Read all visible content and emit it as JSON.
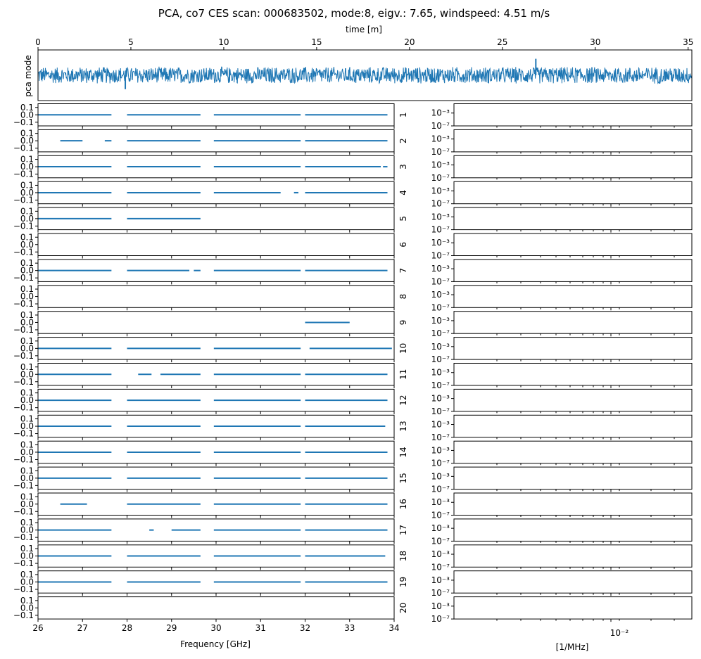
{
  "chart_data": [
    {
      "type": "line",
      "title": "PCA, co7 CES scan: 000683502, mode:8, eigv.: 7.65, windspeed: 4.51 m/s",
      "xlabel": "time [m]",
      "ylabel": "pca mode",
      "xlim": [
        0,
        35.2
      ],
      "ylim": [
        -1,
        1
      ],
      "xticks": [
        "0",
        "5",
        "10",
        "15",
        "20",
        "25",
        "30",
        "35"
      ],
      "color": "#1f77b4",
      "description_values": {
        "noise_band": [
          -0.35,
          0.35
        ],
        "spikes": [
          {
            "x": 4.7,
            "y": -0.55
          },
          {
            "x": 26.8,
            "y": 0.65
          }
        ]
      }
    },
    {
      "type": "line",
      "xlabel": "Frequency [GHz]",
      "xlim": [
        26,
        34
      ],
      "xticks": [
        "26",
        "27",
        "28",
        "29",
        "30",
        "31",
        "32",
        "33",
        "34"
      ],
      "ylim": [
        -0.15,
        0.15
      ],
      "yticks": [
        "0.1",
        "0.0",
        "−0.1"
      ],
      "color": "#1f77b4",
      "series": [
        {
          "name": "1",
          "segments": [
            [
              26.0,
              27.65
            ],
            [
              28.0,
              29.65
            ],
            [
              29.95,
              31.9
            ],
            [
              32.0,
              33.85
            ]
          ]
        },
        {
          "name": "2",
          "segments": [
            [
              26.5,
              27.0
            ],
            [
              27.5,
              27.65
            ],
            [
              28.0,
              29.65
            ],
            [
              29.95,
              31.9
            ],
            [
              32.0,
              33.85
            ]
          ]
        },
        {
          "name": "3",
          "segments": [
            [
              26.0,
              27.65
            ],
            [
              28.0,
              29.65
            ],
            [
              29.95,
              31.9
            ],
            [
              32.0,
              33.7
            ],
            [
              33.75,
              33.85
            ]
          ]
        },
        {
          "name": "4",
          "segments": [
            [
              26.0,
              27.65
            ],
            [
              28.0,
              29.65
            ],
            [
              29.95,
              31.45
            ],
            [
              31.75,
              31.85
            ],
            [
              32.0,
              33.85
            ]
          ]
        },
        {
          "name": "5",
          "segments": [
            [
              26.0,
              27.65
            ],
            [
              28.0,
              29.65
            ]
          ]
        },
        {
          "name": "6",
          "segments": []
        },
        {
          "name": "7",
          "segments": [
            [
              26.0,
              27.65
            ],
            [
              28.0,
              29.4
            ],
            [
              29.5,
              29.65
            ],
            [
              29.95,
              31.9
            ],
            [
              32.0,
              33.85
            ]
          ]
        },
        {
          "name": "8",
          "segments": []
        },
        {
          "name": "9",
          "segments": [
            [
              32.0,
              33.0
            ]
          ]
        },
        {
          "name": "10",
          "segments": [
            [
              26.0,
              27.65
            ],
            [
              28.0,
              29.65
            ],
            [
              29.95,
              31.9
            ],
            [
              32.1,
              33.95
            ]
          ]
        },
        {
          "name": "11",
          "segments": [
            [
              26.0,
              27.65
            ],
            [
              28.25,
              28.55
            ],
            [
              28.75,
              29.65
            ],
            [
              29.95,
              31.9
            ],
            [
              32.0,
              33.85
            ]
          ]
        },
        {
          "name": "12",
          "segments": [
            [
              26.0,
              27.65
            ],
            [
              28.0,
              29.65
            ],
            [
              29.95,
              31.9
            ],
            [
              32.0,
              33.85
            ]
          ]
        },
        {
          "name": "13",
          "segments": [
            [
              26.0,
              27.65
            ],
            [
              28.0,
              29.65
            ],
            [
              29.95,
              31.9
            ],
            [
              32.0,
              33.8
            ]
          ]
        },
        {
          "name": "14",
          "segments": [
            [
              26.0,
              27.65
            ],
            [
              28.0,
              29.65
            ],
            [
              29.95,
              31.9
            ],
            [
              32.0,
              33.85
            ]
          ]
        },
        {
          "name": "15",
          "segments": [
            [
              26.0,
              27.65
            ],
            [
              28.0,
              29.65
            ],
            [
              29.95,
              31.9
            ],
            [
              32.0,
              33.85
            ]
          ]
        },
        {
          "name": "16",
          "segments": [
            [
              26.5,
              27.1
            ],
            [
              28.0,
              29.65
            ],
            [
              29.95,
              31.9
            ],
            [
              32.0,
              33.85
            ]
          ]
        },
        {
          "name": "17",
          "segments": [
            [
              26.0,
              27.65
            ],
            [
              28.5,
              28.6
            ],
            [
              29.0,
              29.65
            ],
            [
              29.95,
              31.9
            ],
            [
              32.0,
              33.85
            ]
          ]
        },
        {
          "name": "18",
          "segments": [
            [
              26.0,
              27.65
            ],
            [
              28.0,
              29.65
            ],
            [
              29.95,
              31.9
            ],
            [
              32.0,
              33.8
            ]
          ]
        },
        {
          "name": "19",
          "segments": [
            [
              26.0,
              27.65
            ],
            [
              28.0,
              29.65
            ],
            [
              29.95,
              31.9
            ],
            [
              32.0,
              33.85
            ]
          ]
        },
        {
          "name": "20",
          "segments": []
        }
      ]
    },
    {
      "type": "line",
      "xlabel": "[1/MHz]",
      "xscale": "log",
      "yscale": "log",
      "xticks": [
        "10⁻²"
      ],
      "yticks": [
        "10⁻³",
        "10⁻⁷"
      ],
      "series_labels": [
        "1",
        "2",
        "3",
        "4",
        "5",
        "6",
        "7",
        "8",
        "9",
        "10",
        "11",
        "12",
        "13",
        "14",
        "15",
        "16",
        "17",
        "18",
        "19",
        "20"
      ],
      "series": []
    }
  ]
}
